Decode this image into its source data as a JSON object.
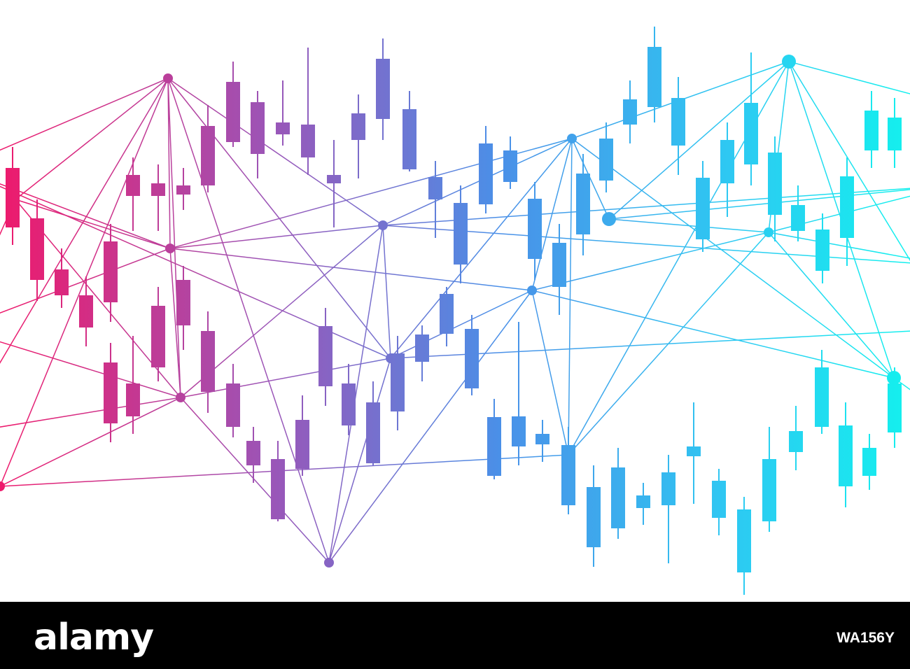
{
  "footer": {
    "brand": "alamy",
    "image_id": "WA156Y"
  }
}
